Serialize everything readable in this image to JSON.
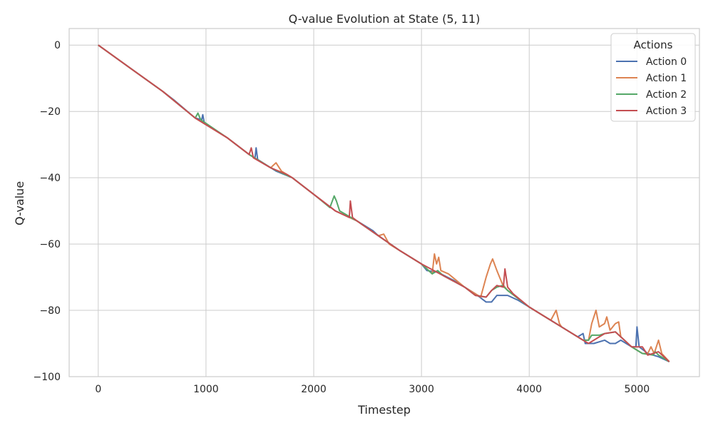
{
  "chart_data": {
    "type": "line",
    "title": "Q-value Evolution at State (5, 11)",
    "xlabel": "Timestep",
    "ylabel": "Q-value",
    "xlim": [
      -270,
      5580
    ],
    "ylim": [
      -100,
      5
    ],
    "xticks": [
      0,
      1000,
      2000,
      3000,
      4000,
      5000
    ],
    "yticks": [
      0,
      -20,
      -40,
      -60,
      -80,
      -100
    ],
    "xtick_labels": [
      "0",
      "1000",
      "2000",
      "3000",
      "4000",
      "5000"
    ],
    "ytick_labels": [
      "0",
      "−20",
      "−40",
      "−60",
      "−80",
      "−100"
    ],
    "grid": true,
    "legend": {
      "title": "Actions",
      "position": "top-right"
    },
    "series": [
      {
        "name": "Action 0",
        "color": "#4c72b0",
        "points": [
          [
            0,
            0
          ],
          [
            300,
            -7
          ],
          [
            600,
            -14
          ],
          [
            700,
            -16.5
          ],
          [
            900,
            -22
          ],
          [
            960,
            -22.5
          ],
          [
            970,
            -21
          ],
          [
            985,
            -23.5
          ],
          [
            1200,
            -28
          ],
          [
            1400,
            -33
          ],
          [
            1455,
            -34
          ],
          [
            1465,
            -31
          ],
          [
            1480,
            -34.5
          ],
          [
            1650,
            -38
          ],
          [
            1800,
            -40
          ],
          [
            2000,
            -45
          ],
          [
            2200,
            -50
          ],
          [
            2400,
            -53
          ],
          [
            2550,
            -56
          ],
          [
            2600,
            -57.5
          ],
          [
            2800,
            -62
          ],
          [
            3000,
            -66
          ],
          [
            3050,
            -68
          ],
          [
            3150,
            -68.5
          ],
          [
            3300,
            -71
          ],
          [
            3400,
            -73
          ],
          [
            3500,
            -75
          ],
          [
            3600,
            -77.5
          ],
          [
            3650,
            -77.5
          ],
          [
            3700,
            -75.5
          ],
          [
            3800,
            -75.5
          ],
          [
            3900,
            -77
          ],
          [
            4000,
            -79
          ],
          [
            4200,
            -83
          ],
          [
            4300,
            -85
          ],
          [
            4450,
            -88
          ],
          [
            4500,
            -87
          ],
          [
            4520,
            -90
          ],
          [
            4600,
            -90
          ],
          [
            4700,
            -89
          ],
          [
            4750,
            -90
          ],
          [
            4800,
            -90
          ],
          [
            4850,
            -89
          ],
          [
            4950,
            -91
          ],
          [
            4990,
            -91
          ],
          [
            5000,
            -85
          ],
          [
            5020,
            -91
          ],
          [
            5100,
            -93
          ],
          [
            5200,
            -94
          ],
          [
            5300,
            -95.5
          ]
        ]
      },
      {
        "name": "Action 1",
        "color": "#dd8452",
        "points": [
          [
            0,
            0
          ],
          [
            300,
            -7
          ],
          [
            600,
            -14
          ],
          [
            900,
            -22
          ],
          [
            1200,
            -28
          ],
          [
            1400,
            -33
          ],
          [
            1600,
            -37
          ],
          [
            1650,
            -35.5
          ],
          [
            1700,
            -38
          ],
          [
            1800,
            -40
          ],
          [
            2000,
            -45
          ],
          [
            2200,
            -50
          ],
          [
            2400,
            -53
          ],
          [
            2600,
            -57.5
          ],
          [
            2650,
            -57
          ],
          [
            2700,
            -60
          ],
          [
            2800,
            -62
          ],
          [
            3000,
            -66
          ],
          [
            3100,
            -69
          ],
          [
            3120,
            -63
          ],
          [
            3140,
            -66
          ],
          [
            3160,
            -64
          ],
          [
            3180,
            -68
          ],
          [
            3250,
            -69
          ],
          [
            3400,
            -73
          ],
          [
            3550,
            -76
          ],
          [
            3600,
            -70
          ],
          [
            3640,
            -66
          ],
          [
            3660,
            -64.5
          ],
          [
            3700,
            -68
          ],
          [
            3750,
            -72
          ],
          [
            3800,
            -74
          ],
          [
            4000,
            -79
          ],
          [
            4200,
            -83
          ],
          [
            4250,
            -80
          ],
          [
            4280,
            -84
          ],
          [
            4300,
            -85
          ],
          [
            4500,
            -89
          ],
          [
            4550,
            -89
          ],
          [
            4580,
            -84
          ],
          [
            4600,
            -82
          ],
          [
            4620,
            -80
          ],
          [
            4650,
            -85
          ],
          [
            4700,
            -84
          ],
          [
            4720,
            -82
          ],
          [
            4750,
            -86
          ],
          [
            4800,
            -84
          ],
          [
            4830,
            -83.5
          ],
          [
            4850,
            -88
          ],
          [
            4950,
            -91
          ],
          [
            5050,
            -93
          ],
          [
            5100,
            -93
          ],
          [
            5130,
            -91
          ],
          [
            5160,
            -93
          ],
          [
            5200,
            -89
          ],
          [
            5230,
            -93
          ],
          [
            5300,
            -95.5
          ]
        ]
      },
      {
        "name": "Action 2",
        "color": "#55a868",
        "points": [
          [
            0,
            0
          ],
          [
            300,
            -7
          ],
          [
            600,
            -14
          ],
          [
            900,
            -22
          ],
          [
            925,
            -20.5
          ],
          [
            950,
            -22.5
          ],
          [
            1200,
            -28
          ],
          [
            1400,
            -33
          ],
          [
            1600,
            -37
          ],
          [
            1800,
            -40
          ],
          [
            2000,
            -45
          ],
          [
            2150,
            -49
          ],
          [
            2190,
            -45.5
          ],
          [
            2210,
            -47
          ],
          [
            2240,
            -50
          ],
          [
            2400,
            -53
          ],
          [
            2600,
            -57.5
          ],
          [
            2800,
            -62
          ],
          [
            3000,
            -66
          ],
          [
            3100,
            -69
          ],
          [
            3150,
            -68
          ],
          [
            3200,
            -69.5
          ],
          [
            3400,
            -73
          ],
          [
            3500,
            -75.5
          ],
          [
            3600,
            -76
          ],
          [
            3650,
            -74
          ],
          [
            3700,
            -73
          ],
          [
            3750,
            -72.5
          ],
          [
            3800,
            -74
          ],
          [
            4000,
            -79
          ],
          [
            4200,
            -83
          ],
          [
            4300,
            -85
          ],
          [
            4500,
            -89
          ],
          [
            4550,
            -89
          ],
          [
            4580,
            -87.5
          ],
          [
            4650,
            -87.5
          ],
          [
            4700,
            -87
          ],
          [
            4800,
            -86.5
          ],
          [
            4850,
            -88
          ],
          [
            4950,
            -91
          ],
          [
            5050,
            -93
          ],
          [
            5150,
            -93.5
          ],
          [
            5170,
            -92.5
          ],
          [
            5200,
            -93.5
          ],
          [
            5300,
            -95.5
          ]
        ]
      },
      {
        "name": "Action 3",
        "color": "#c44e52",
        "points": [
          [
            0,
            0
          ],
          [
            300,
            -7
          ],
          [
            600,
            -14
          ],
          [
            900,
            -22
          ],
          [
            1200,
            -28
          ],
          [
            1400,
            -33
          ],
          [
            1420,
            -31
          ],
          [
            1440,
            -34
          ],
          [
            1600,
            -37
          ],
          [
            1750,
            -39
          ],
          [
            1800,
            -40
          ],
          [
            2000,
            -45
          ],
          [
            2200,
            -50
          ],
          [
            2330,
            -52
          ],
          [
            2340,
            -47
          ],
          [
            2360,
            -52
          ],
          [
            2400,
            -53
          ],
          [
            2600,
            -57.5
          ],
          [
            2800,
            -62
          ],
          [
            3000,
            -66
          ],
          [
            3200,
            -69.5
          ],
          [
            3400,
            -73
          ],
          [
            3500,
            -75.5
          ],
          [
            3600,
            -76
          ],
          [
            3650,
            -74
          ],
          [
            3700,
            -72.5
          ],
          [
            3760,
            -73
          ],
          [
            3775,
            -67.5
          ],
          [
            3800,
            -73
          ],
          [
            3850,
            -75
          ],
          [
            4000,
            -79
          ],
          [
            4200,
            -83
          ],
          [
            4300,
            -85
          ],
          [
            4500,
            -89
          ],
          [
            4550,
            -90
          ],
          [
            4600,
            -89
          ],
          [
            4700,
            -87
          ],
          [
            4800,
            -86.5
          ],
          [
            4850,
            -88
          ],
          [
            4950,
            -91
          ],
          [
            5050,
            -91
          ],
          [
            5100,
            -93.5
          ],
          [
            5200,
            -92.5
          ],
          [
            5300,
            -95.5
          ]
        ]
      }
    ]
  }
}
